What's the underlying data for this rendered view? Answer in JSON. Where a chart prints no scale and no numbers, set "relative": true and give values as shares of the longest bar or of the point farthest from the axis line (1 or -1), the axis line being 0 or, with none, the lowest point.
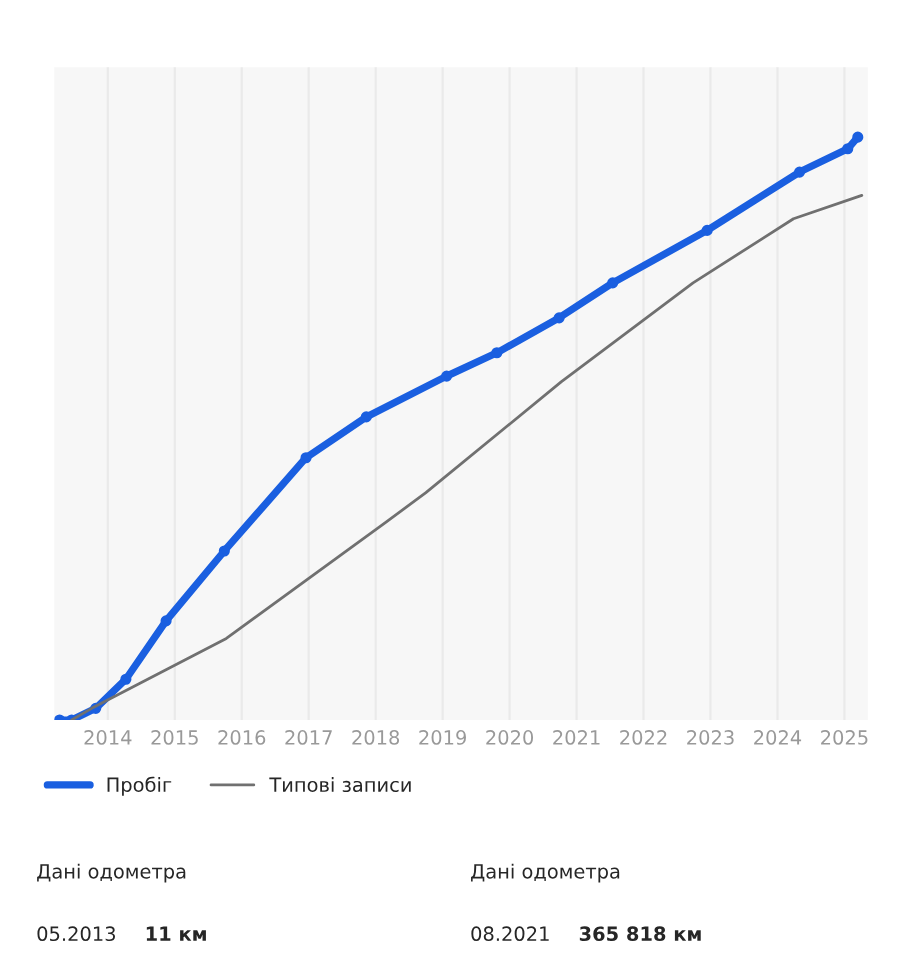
{
  "chart_data": {
    "type": "line",
    "relative": true,
    "grid": "x",
    "legend": "bottom left",
    "xlim": [
      2013.2,
      2025.35
    ],
    "xticks": [
      2014,
      2015,
      2016,
      2017,
      2018,
      2019,
      2020,
      2021,
      2022,
      2023,
      2024,
      2025
    ],
    "series": [
      {
        "name": "Пробіг",
        "color": "#1a5fe0",
        "marker": "circle",
        "x": [
          2013.28,
          2013.46,
          2013.82,
          2014.27,
          2014.87,
          2015.74,
          2016.96,
          2017.86,
          2019.06,
          2019.81,
          2020.74,
          2021.54,
          2022.95,
          2024.33,
          2025.05,
          2025.2
        ],
        "values": [
          0,
          0,
          0.02,
          0.07,
          0.17,
          0.29,
          0.45,
          0.52,
          0.59,
          0.63,
          0.69,
          0.75,
          0.84,
          0.94,
          0.98,
          1.0
        ]
      },
      {
        "name": "Типові записи",
        "color": "#707070",
        "marker": "none",
        "x": [
          2013.46,
          2013.76,
          2015.77,
          2018.16,
          2018.75,
          2020.77,
          2022.74,
          2024.24,
          2025.26
        ],
        "values": [
          0,
          0.02,
          0.14,
          0.34,
          0.39,
          0.58,
          0.75,
          0.86,
          0.9
        ]
      }
    ],
    "annotations": [
      "Дані одометра",
      "05.2013",
      "11 км",
      "Дані одометра",
      "08.2021",
      "365 818 км"
    ]
  }
}
